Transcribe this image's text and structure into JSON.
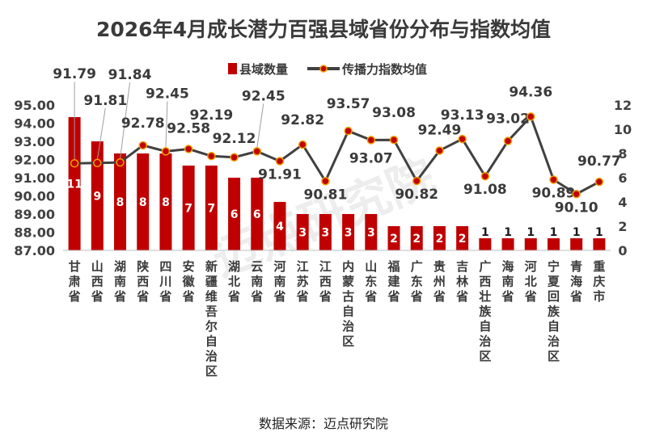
{
  "title": "2026年4月成长潜力百强县域省份分布与指数均值",
  "source": "数据来源：迈点研究院",
  "watermark": "迈点研究院",
  "colors": {
    "bar": "#c00000",
    "line": "#404040",
    "marker": "#c00000",
    "marker_edge": "#f2a000"
  },
  "chart_data": {
    "type": "bar",
    "categories": [
      "甘肃省",
      "山西省",
      "湖南省",
      "陕西省",
      "四川省",
      "安徽省",
      "新疆维吾尔自治区",
      "湖北省",
      "云南省",
      "河南省",
      "江苏省",
      "江西省",
      "内蒙古自治区",
      "山东省",
      "福建省",
      "广东省",
      "贵州省",
      "吉林省",
      "广西壮族自治区",
      "海南省",
      "河北省",
      "宁夏回族自治区",
      "青海省",
      "重庆市"
    ],
    "series": [
      {
        "name": "县域数量",
        "type": "bar",
        "axis": "right",
        "values": [
          11,
          9,
          8,
          8,
          8,
          7,
          7,
          6,
          6,
          4,
          3,
          3,
          3,
          3,
          2,
          2,
          2,
          2,
          1,
          1,
          1,
          1,
          1,
          1
        ]
      },
      {
        "name": "传播力指数均值",
        "type": "line",
        "axis": "left",
        "values": [
          91.79,
          91.81,
          91.84,
          92.78,
          92.45,
          92.58,
          92.19,
          92.12,
          92.45,
          91.91,
          92.82,
          90.81,
          93.57,
          93.07,
          93.08,
          90.82,
          92.49,
          93.13,
          91.08,
          93.02,
          94.36,
          90.89,
          90.1,
          90.77
        ]
      }
    ],
    "left_axis": {
      "ylim": [
        87.0,
        95.0
      ],
      "ticks": [
        "87.00",
        "88.00",
        "89.00",
        "90.00",
        "91.00",
        "92.00",
        "93.00",
        "94.00",
        "95.00"
      ]
    },
    "right_axis": {
      "ylim": [
        0,
        12
      ],
      "ticks": [
        "0",
        "2",
        "4",
        "6",
        "8",
        "10",
        "12"
      ]
    },
    "legend_position": "top-center",
    "grid": false
  }
}
